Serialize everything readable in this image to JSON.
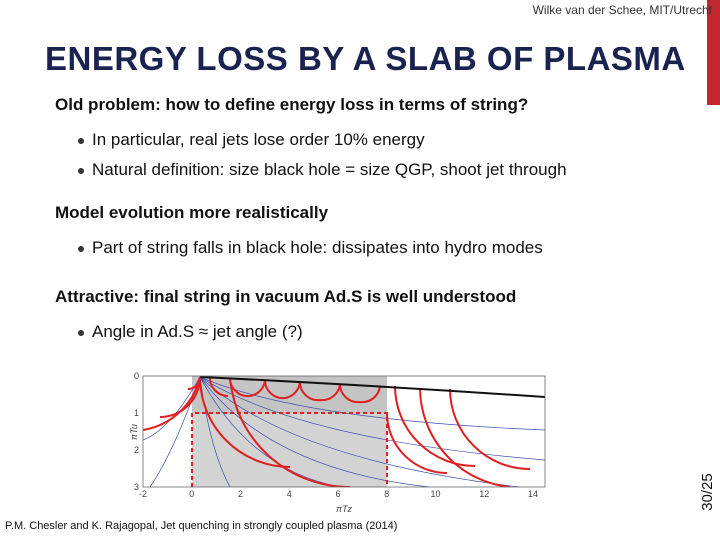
{
  "header": {
    "author": "Wilke van der Schee, MIT/Utrecht",
    "title": "ENERGY LOSS BY A SLAB OF PLASMA",
    "page": "30/25"
  },
  "sections": [
    {
      "heading": "Old problem: how to define energy loss in terms of string?",
      "bullets": [
        "In particular, real jets lose order 10% energy",
        "Natural definition: size black hole = size QGP, shoot jet through"
      ]
    },
    {
      "heading": "Model evolution more realistically",
      "bullets": [
        "Part of string falls in black hole: dissipates into hydro modes"
      ]
    },
    {
      "heading": "Attractive: final string in vacuum Ad.S is well understood",
      "bullets": [
        "Angle in Ad.S ≈ jet angle (?)"
      ]
    }
  ],
  "figure": {
    "xlabel": "πTz",
    "ylabel": "πTu",
    "xticks": [
      -2,
      0,
      2,
      4,
      6,
      8,
      10,
      12,
      14
    ],
    "yticks": [
      0,
      1,
      2,
      3
    ]
  },
  "credit": "P.M. Chesler and K. Rajagopal, Jet quenching in strongly coupled plasma (2014)"
}
